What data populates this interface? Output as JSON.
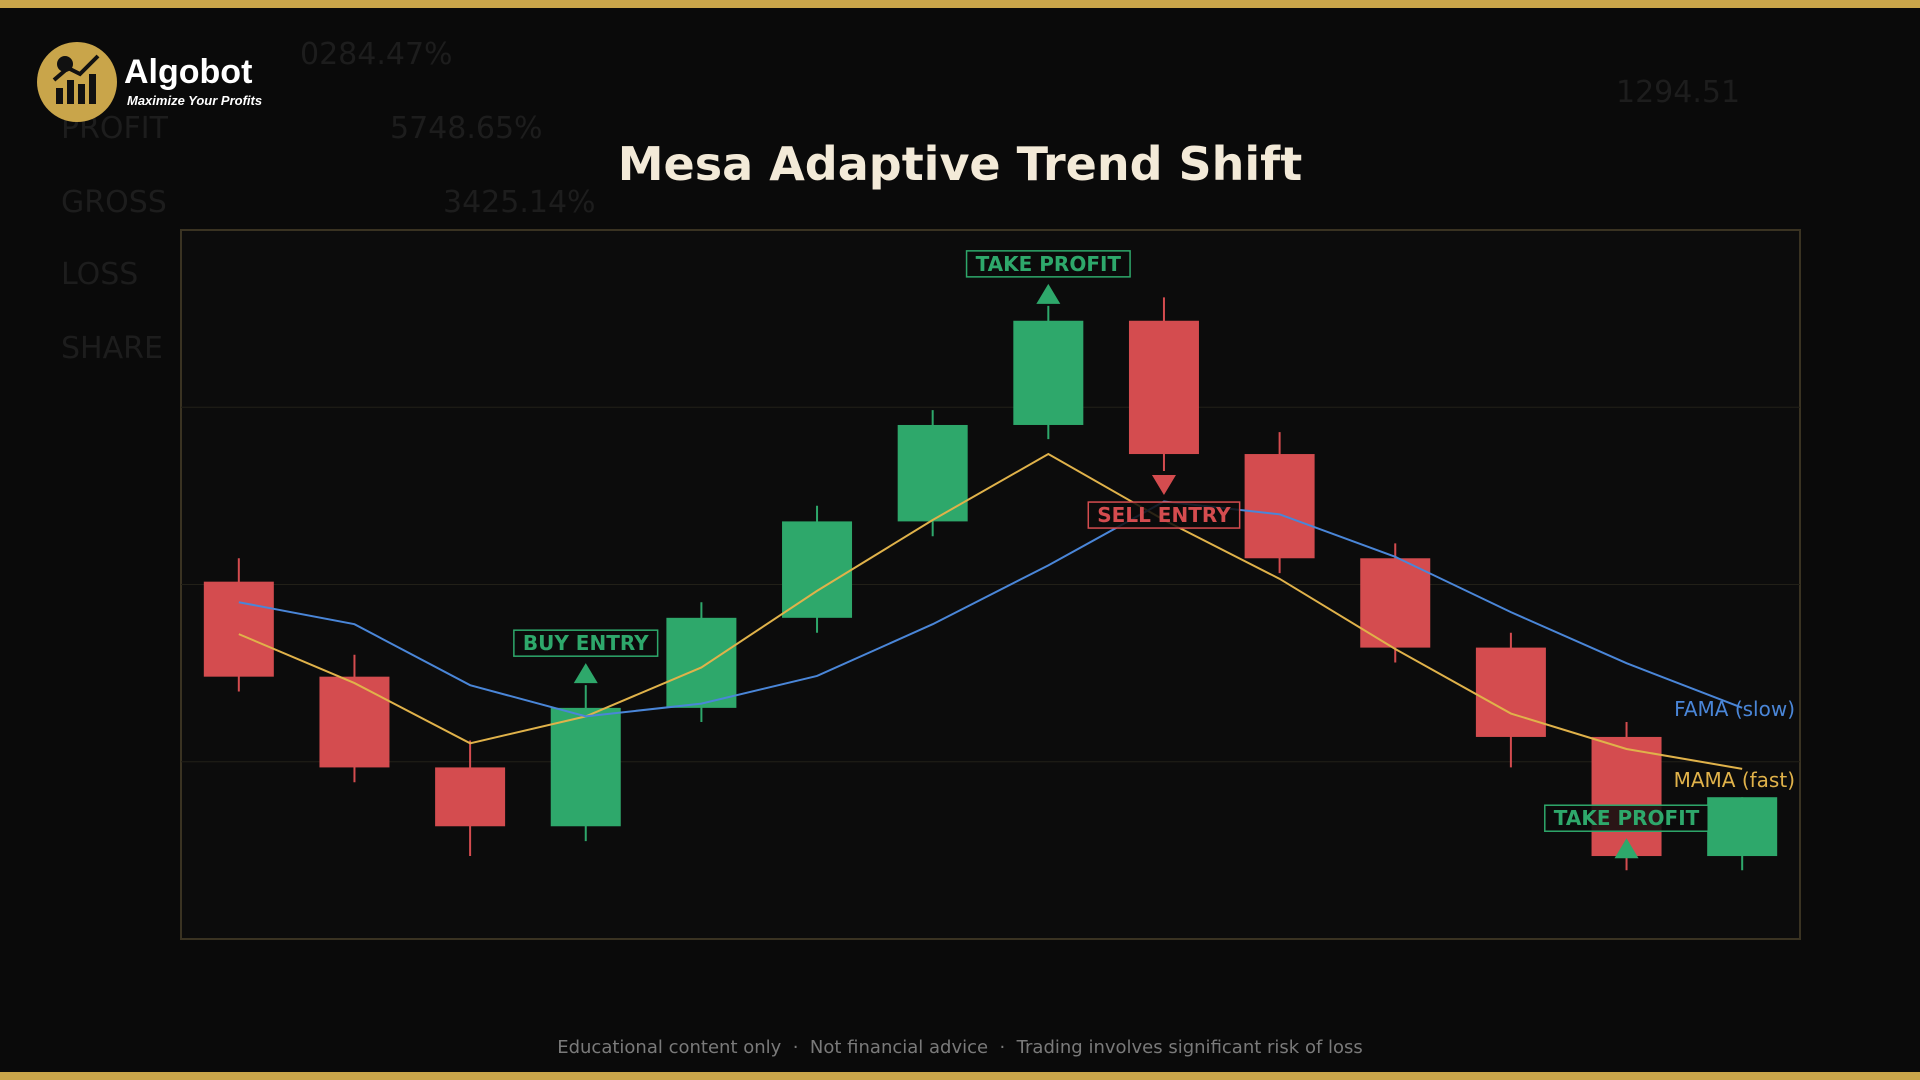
{
  "brand": {
    "name": "Algobot",
    "tagline": "Maximize Your Profits"
  },
  "background_text": [
    "0284.47%",
    "PROFIT",
    "5748.65%",
    "GROSS",
    "3425.14%",
    "LOSS",
    "SHARE",
    "1294.51"
  ],
  "chart_data": {
    "type": "candlestick",
    "title": "Mesa Adaptive Trend Shift",
    "open": [
      50.4,
      37.0,
      24.2,
      15.9,
      32.6,
      45.3,
      58.9,
      72.5,
      87.2,
      68.4,
      53.7,
      41.1,
      28.5,
      11.7
    ],
    "high": [
      53.7,
      40.1,
      28.0,
      35.8,
      47.5,
      61.1,
      74.6,
      89.3,
      90.5,
      71.5,
      55.8,
      43.2,
      30.6,
      20.0
    ],
    "low": [
      34.9,
      22.1,
      11.7,
      13.8,
      30.6,
      43.2,
      56.8,
      70.5,
      66.0,
      51.6,
      39.0,
      24.2,
      9.7,
      9.7
    ],
    "close": [
      37.0,
      24.2,
      15.9,
      32.6,
      45.3,
      58.9,
      72.5,
      87.2,
      68.4,
      53.7,
      41.1,
      28.5,
      11.7,
      20.0
    ],
    "up_color": "#2ea86b",
    "down_color": "#d44c4f",
    "series": [
      {
        "name": "MAMA (fast)",
        "color": "#e0b24a",
        "values": [
          43.0,
          36.1,
          27.6,
          31.4,
          38.3,
          49.1,
          59.1,
          68.4,
          59.1,
          50.8,
          40.9,
          31.8,
          26.8,
          24.0
        ]
      },
      {
        "name": "FAMA (slow)",
        "color": "#4a86d8",
        "values": [
          47.5,
          44.4,
          35.8,
          31.4,
          33.2,
          37.1,
          44.4,
          52.7,
          61.7,
          59.9,
          53.9,
          46.1,
          38.9,
          32.6
        ]
      }
    ],
    "annotations": [
      {
        "text": "BUY ENTRY",
        "index": 3,
        "direction": "up",
        "anchor": "high",
        "color": "#2ea86b"
      },
      {
        "text": "TAKE PROFIT",
        "index": 7,
        "direction": "up",
        "anchor": "high",
        "color": "#2ea86b"
      },
      {
        "text": "SELL ENTRY",
        "index": 8,
        "direction": "down",
        "anchor": "low",
        "color": "#d44c4f"
      },
      {
        "text": "TAKE PROFIT",
        "index": 12,
        "direction": "up",
        "anchor": "low",
        "color": "#2ea86b"
      }
    ],
    "ylim": [
      0,
      100
    ],
    "yticks": [
      25,
      50,
      75
    ],
    "grid": true
  },
  "footer": "Educational content only  ·  Not financial advice  ·  Trading involves significant risk of loss"
}
